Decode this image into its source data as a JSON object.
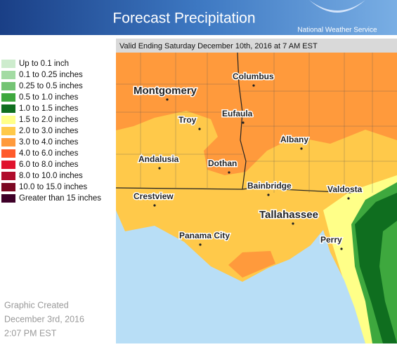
{
  "header": {
    "title": "Forecast Precipitation",
    "agency": "National Weather Service"
  },
  "map": {
    "valid_time": "Valid Ending Saturday December 10th, 2016 at 7 AM EST",
    "cities": [
      "Montgomery",
      "Columbus",
      "Troy",
      "Eufaula",
      "Albany",
      "Andalusia",
      "Dothan",
      "Bainbridge",
      "Valdosta",
      "Crestview",
      "Tallahassee",
      "Panama City",
      "Perry"
    ]
  },
  "legend": {
    "items": [
      {
        "label": "Up to 0.1 inch",
        "color": "#cdeccd"
      },
      {
        "label": "0.1 to 0.25 inches",
        "color": "#a3dba3"
      },
      {
        "label": "0.25 to 0.5 inches",
        "color": "#74c474"
      },
      {
        "label": "0.5 to 1.0 inches",
        "color": "#3ea83e"
      },
      {
        "label": "1.0 to 1.5 inches",
        "color": "#0f6e1f"
      },
      {
        "label": "1.5 to 2.0 inches",
        "color": "#ffff88"
      },
      {
        "label": "2.0 to 3.0 inches",
        "color": "#ffc94a"
      },
      {
        "label": "3.0 to 4.0 inches",
        "color": "#ff9a3c"
      },
      {
        "label": "4.0 to 6.0 inches",
        "color": "#ff5a2a"
      },
      {
        "label": "6.0 to 8.0 inches",
        "color": "#e0122c"
      },
      {
        "label": "8.0 to 10.0 inches",
        "color": "#b00c2c"
      },
      {
        "label": "10.0 to 15.0 inches",
        "color": "#7c0822"
      },
      {
        "label": "Greater than 15 inches",
        "color": "#3e0028"
      }
    ]
  },
  "footer": {
    "lines": [
      "Graphic Created",
      "December 3rd, 2016",
      "2:07 PM EST"
    ]
  }
}
